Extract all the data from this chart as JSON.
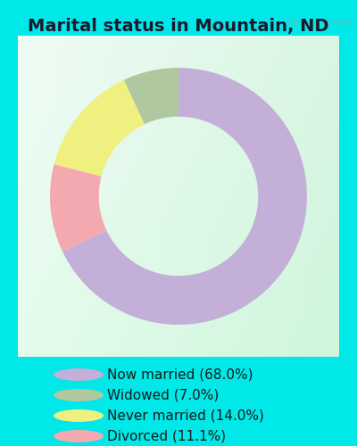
{
  "title": "Marital status in Mountain, ND",
  "slices": [
    68.0,
    7.0,
    14.0,
    11.1
  ],
  "labels": [
    "Now married (68.0%)",
    "Widowed (7.0%)",
    "Never married (14.0%)",
    "Divorced (11.1%)"
  ],
  "colors": [
    "#c4afd8",
    "#afc8a0",
    "#f0f080",
    "#f4a8b0"
  ],
  "outer_bg": "#00e8e8",
  "title_fontsize": 14,
  "legend_fontsize": 11,
  "watermark": "City-Data.com",
  "donut_width": 0.38
}
